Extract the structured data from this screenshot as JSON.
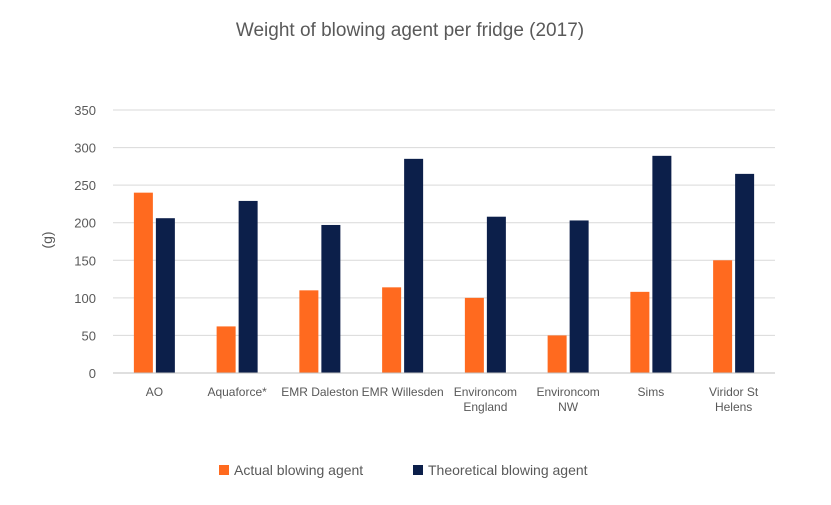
{
  "chart_data": {
    "type": "bar",
    "title": "Weight of blowing agent per fridge (2017)",
    "xlabel": "",
    "ylabel": "(g)",
    "ylim": [
      0,
      350
    ],
    "yticks": [
      0,
      50,
      100,
      150,
      200,
      250,
      300,
      350
    ],
    "grid": true,
    "legend_position": "bottom",
    "categories": [
      [
        "AO"
      ],
      [
        "Aquaforce*"
      ],
      [
        "EMR Daleston"
      ],
      [
        "EMR Willesden"
      ],
      [
        "Environcom",
        "England"
      ],
      [
        "Environcom",
        "NW"
      ],
      [
        "Sims"
      ],
      [
        "Viridor St",
        "Helens"
      ]
    ],
    "series": [
      {
        "name": "Actual blowing agent",
        "color": "#ff6a1f",
        "values": [
          240,
          62,
          110,
          114,
          100,
          50,
          108,
          150
        ]
      },
      {
        "name": "Theoretical blowing agent",
        "color": "#0c1f4a",
        "values": [
          206,
          229,
          197,
          285,
          208,
          203,
          289,
          265
        ]
      }
    ]
  }
}
